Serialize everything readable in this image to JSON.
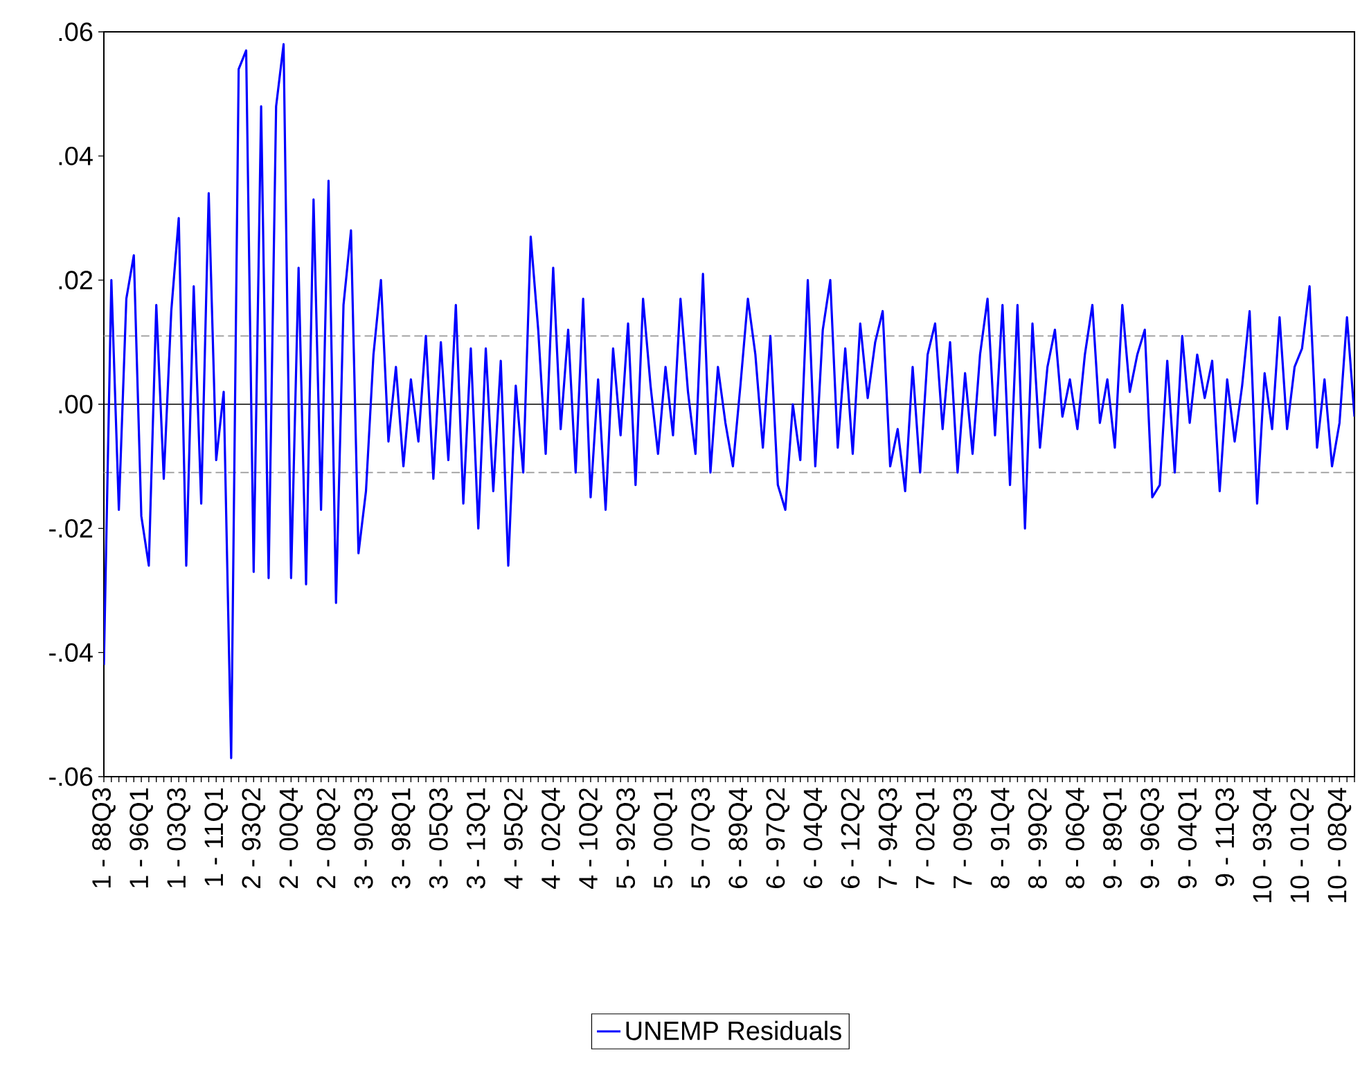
{
  "chart_data": {
    "type": "line",
    "categories": [
      "1 - 88Q3",
      null,
      null,
      null,
      null,
      "1 - 96Q1",
      null,
      null,
      null,
      null,
      "1 - 03Q3",
      null,
      null,
      null,
      null,
      "1 - 11Q1",
      null,
      null,
      null,
      null,
      "2 - 93Q2",
      null,
      null,
      null,
      null,
      "2 - 00Q4",
      null,
      null,
      null,
      null,
      "2 - 08Q2",
      null,
      null,
      null,
      null,
      "3 - 90Q3",
      null,
      null,
      null,
      null,
      "3 - 98Q1",
      null,
      null,
      null,
      null,
      "3 - 05Q3",
      null,
      null,
      null,
      null,
      "3 - 13Q1",
      null,
      null,
      null,
      null,
      "4 - 95Q2",
      null,
      null,
      null,
      null,
      "4 - 02Q4",
      null,
      null,
      null,
      null,
      "4 - 10Q2",
      null,
      null,
      null,
      null,
      "5 - 92Q3",
      null,
      null,
      null,
      null,
      "5 - 00Q1",
      null,
      null,
      null,
      null,
      "5 - 07Q3",
      null,
      null,
      null,
      null,
      "6 - 89Q4",
      null,
      null,
      null,
      null,
      "6 - 97Q2",
      null,
      null,
      null,
      null,
      "6 - 04Q4",
      null,
      null,
      null,
      null,
      "6 - 12Q2",
      null,
      null,
      null,
      null,
      "7 - 94Q3",
      null,
      null,
      null,
      null,
      "7 - 02Q1",
      null,
      null,
      null,
      null,
      "7 - 09Q3",
      null,
      null,
      null,
      null,
      "8 - 91Q4",
      null,
      null,
      null,
      null,
      "8 - 99Q2",
      null,
      null,
      null,
      null,
      "8 - 06Q4",
      null,
      null,
      null,
      null,
      "9 - 89Q1",
      null,
      null,
      null,
      null,
      "9 - 96Q3",
      null,
      null,
      null,
      null,
      "9 - 04Q1",
      null,
      null,
      null,
      null,
      "9 - 11Q3",
      null,
      null,
      null,
      null,
      "10 - 93Q4",
      null,
      null,
      null,
      null,
      "10 - 01Q2",
      null,
      null,
      null,
      null,
      "10 - 08Q4",
      null,
      null
    ],
    "series": [
      {
        "name": "UNEMP Residuals",
        "color": "#0000ff",
        "values": [
          -0.042,
          0.02,
          -0.017,
          0.017,
          0.024,
          -0.018,
          -0.026,
          0.016,
          -0.012,
          0.015,
          0.03,
          -0.026,
          0.019,
          -0.016,
          0.034,
          -0.009,
          0.002,
          -0.057,
          0.054,
          0.057,
          -0.027,
          0.048,
          -0.028,
          0.048,
          0.058,
          -0.028,
          0.022,
          -0.029,
          0.033,
          -0.017,
          0.036,
          -0.032,
          0.016,
          0.028,
          -0.024,
          -0.014,
          0.008,
          0.02,
          -0.006,
          0.006,
          -0.01,
          0.004,
          -0.006,
          0.011,
          -0.012,
          0.01,
          -0.009,
          0.016,
          -0.016,
          0.009,
          -0.02,
          0.009,
          -0.014,
          0.007,
          -0.026,
          0.003,
          -0.011,
          0.027,
          0.012,
          -0.008,
          0.022,
          -0.004,
          0.012,
          -0.011,
          0.017,
          -0.015,
          0.004,
          -0.017,
          0.009,
          -0.005,
          0.013,
          -0.013,
          0.017,
          0.003,
          -0.008,
          0.006,
          -0.005,
          0.017,
          0.002,
          -0.008,
          0.021,
          -0.011,
          0.006,
          -0.003,
          -0.01,
          0.003,
          0.017,
          0.008,
          -0.007,
          0.011,
          -0.013,
          -0.017,
          0.0,
          -0.009,
          0.02,
          -0.01,
          0.012,
          0.02,
          -0.007,
          0.009,
          -0.008,
          0.013,
          0.001,
          0.01,
          0.015,
          -0.01,
          -0.004,
          -0.014,
          0.006,
          -0.011,
          0.008,
          0.013,
          -0.004,
          0.01,
          -0.011,
          0.005,
          -0.008,
          0.008,
          0.017,
          -0.005,
          0.016,
          -0.013,
          0.016,
          -0.02,
          0.013,
          -0.007,
          0.006,
          0.012,
          -0.002,
          0.004,
          -0.004,
          0.008,
          0.016,
          -0.003,
          0.004,
          -0.007,
          0.016,
          0.002,
          0.008,
          0.012,
          -0.015,
          -0.013,
          0.007,
          -0.011,
          0.011,
          -0.003,
          0.008,
          0.001,
          0.007,
          -0.014,
          0.004,
          -0.006,
          0.003,
          0.015,
          -0.016,
          0.005,
          -0.004,
          0.014,
          -0.004,
          0.006,
          0.009,
          0.019,
          -0.007,
          0.004,
          -0.01,
          -0.003,
          0.014,
          -0.002
        ]
      }
    ],
    "ylim": [
      -0.06,
      0.06
    ],
    "yticks": [
      {
        "value": -0.06,
        "label": "-.06"
      },
      {
        "value": -0.04,
        "label": "-.04"
      },
      {
        "value": -0.02,
        "label": "-.02"
      },
      {
        "value": 0,
        "label": ".00"
      },
      {
        "value": 0.02,
        "label": ".02"
      },
      {
        "value": 0.04,
        "label": ".04"
      },
      {
        "value": 0.06,
        "label": ".06"
      }
    ],
    "ref_lines": [
      {
        "axis": "y",
        "value": 0,
        "color": "#000000",
        "line_style": "solid"
      },
      {
        "axis": "y",
        "value": 0.011,
        "color": "#999999",
        "line_style": "dashed"
      },
      {
        "axis": "y",
        "value": -0.011,
        "color": "#999999",
        "line_style": "dashed"
      }
    ],
    "grid": false,
    "legend": "bottom",
    "marker": "none",
    "line_style": "solid"
  }
}
